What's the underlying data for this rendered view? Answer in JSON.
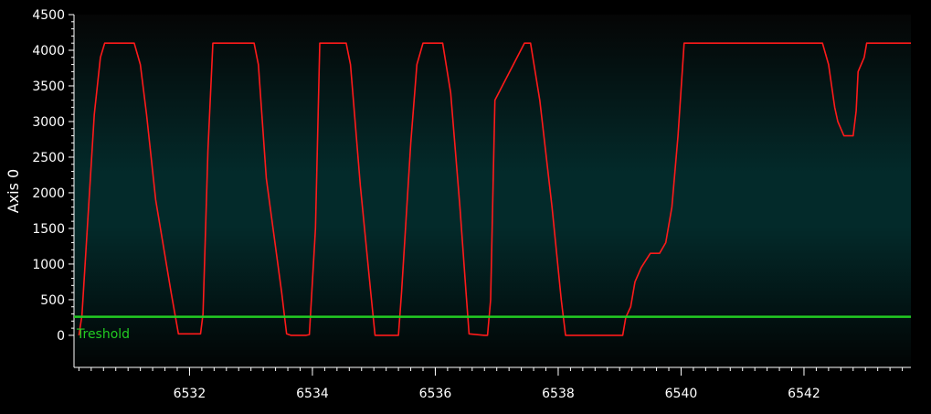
{
  "chart_data": {
    "type": "line",
    "ylabel": "Axis 0",
    "xlabel": "",
    "xlim": [
      6530.12,
      6543.74
    ],
    "ylim": [
      -450,
      4500
    ],
    "xticks": [
      6532,
      6534,
      6536,
      6538,
      6540,
      6542
    ],
    "yticks": [
      0,
      500,
      1000,
      1500,
      2000,
      2500,
      3000,
      3500,
      4000,
      4500
    ],
    "grid": false,
    "colors": {
      "signal": "#ff1a1a",
      "threshold": "#22cc22",
      "background_top": "#050505",
      "background_mid": "#032a2a"
    },
    "series": [
      {
        "name": "",
        "color": "#ff1a1a",
        "x": [
          6530.2,
          6530.25,
          6530.35,
          6530.45,
          6530.55,
          6530.62,
          6531.1,
          6531.2,
          6531.3,
          6531.45,
          6531.7,
          6531.82,
          6532.18,
          6532.22,
          6532.3,
          6532.38,
          6533.05,
          6533.12,
          6533.25,
          6533.5,
          6533.58,
          6533.65,
          6533.9,
          6533.95,
          6534.05,
          6534.12,
          6534.55,
          6534.62,
          6534.78,
          6534.95,
          6535.02,
          6535.4,
          6535.45,
          6535.6,
          6535.7,
          6535.8,
          6536.12,
          6536.25,
          6536.4,
          6536.5,
          6536.55,
          6536.8,
          6536.85,
          6536.9,
          6536.97,
          6537.45,
          6537.55,
          6537.7,
          6537.9,
          6538.05,
          6538.12,
          6538.95,
          6539.05,
          6539.1,
          6539.18,
          6539.25,
          6539.35,
          6539.5,
          6539.65,
          6539.75,
          6539.85,
          6539.95,
          6540.05,
          6542.3,
          6542.4,
          6542.5,
          6542.55,
          6542.65,
          6542.8,
          6542.85,
          6542.88,
          6542.98,
          6543.02,
          6543.74
        ],
        "y": [
          0,
          280,
          1700,
          3100,
          3900,
          4100,
          4100,
          3800,
          3100,
          1900,
          600,
          20,
          20,
          300,
          2600,
          4100,
          4100,
          3800,
          2200,
          600,
          20,
          0,
          0,
          10,
          1500,
          4100,
          4100,
          3800,
          2100,
          600,
          0,
          0,
          600,
          2700,
          3800,
          4100,
          4100,
          3400,
          1800,
          600,
          20,
          0,
          0,
          500,
          3300,
          4100,
          4100,
          3300,
          1800,
          500,
          0,
          0,
          0,
          250,
          400,
          750,
          950,
          1150,
          1150,
          1300,
          1800,
          2800,
          4100,
          4100,
          3800,
          3200,
          3000,
          2800,
          2800,
          3150,
          3700,
          3900,
          4100,
          4100
        ]
      },
      {
        "name": "Treshold",
        "color": "#22cc22",
        "x": [
          6530.12,
          6543.74
        ],
        "y": [
          260,
          260
        ]
      }
    ],
    "annotations": [
      {
        "text": "Treshold"
      }
    ]
  }
}
